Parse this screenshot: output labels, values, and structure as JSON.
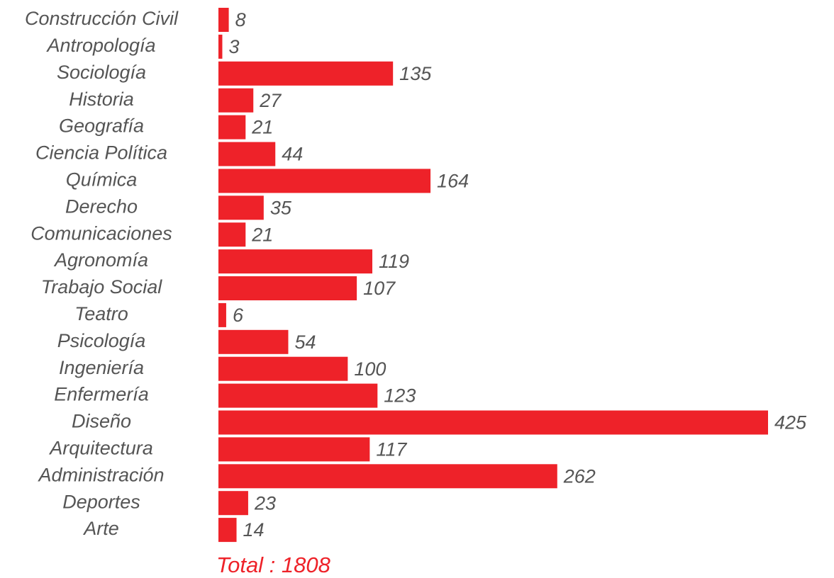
{
  "chart_data": {
    "type": "bar",
    "orientation": "horizontal",
    "color": "#ee2229",
    "categories": [
      "Construcción Civil",
      "Antropología",
      "Sociología",
      "Historia",
      "Geografía",
      "Ciencia Política",
      "Química",
      "Derecho",
      "Comunicaciones",
      "Agronomía",
      "Trabajo Social",
      "Teatro",
      "Psicología",
      "Ingeniería",
      "Enfermería",
      "Diseño",
      "Arquitectura",
      "Administración",
      "Deportes",
      "Arte"
    ],
    "values": [
      8,
      3,
      135,
      27,
      21,
      44,
      164,
      35,
      21,
      119,
      107,
      6,
      54,
      100,
      123,
      425,
      117,
      262,
      23,
      14
    ],
    "annotation": "Total : 1808"
  }
}
